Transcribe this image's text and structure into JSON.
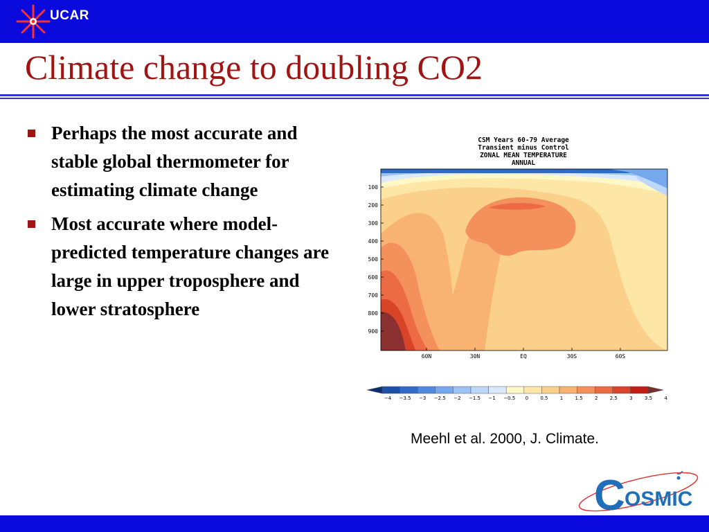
{
  "header": {
    "logo_text": "UCAR"
  },
  "title": "Climate change to doubling CO2",
  "bullets": [
    {
      "text": "Perhaps the most accurate and stable global thermometer for estimating climate change"
    },
    {
      "text": "Most accurate where model-predicted temperature changes are large in upper troposphere and lower stratosphere"
    }
  ],
  "figure": {
    "title_lines": [
      "CSM Years 60-79 Average",
      "Transient minus Control",
      "ZONAL MEAN TEMPERATURE",
      "ANNUAL"
    ],
    "y_ticks": [
      "100",
      "200",
      "300",
      "400",
      "500",
      "600",
      "700",
      "800",
      "900"
    ],
    "x_ticks": [
      "60N",
      "30N",
      "EQ",
      "30S",
      "60S"
    ],
    "colorbar_ticks": [
      "-4",
      "-3.5",
      "-3",
      "-2.5",
      "-2",
      "-1.5",
      "-1",
      "-0.5",
      "0",
      "0.5",
      "1",
      "1.5",
      "2",
      "2.5",
      "3",
      "3.5",
      "4"
    ],
    "colorbar_colors": [
      "#1b4fa8",
      "#2e6cc8",
      "#4f8ae0",
      "#76a8ee",
      "#9cc2f6",
      "#bdd7fa",
      "#dbe9fc",
      "#fdf8c6",
      "#fde6a6",
      "#fbd08a",
      "#f8b272",
      "#f4905c",
      "#ec6a44",
      "#d84428",
      "#c31c12"
    ]
  },
  "citation": "Meehl et al. 2000, J. Climate.",
  "footer_logo": {
    "text": "OSMIC",
    "initial": "C"
  }
}
